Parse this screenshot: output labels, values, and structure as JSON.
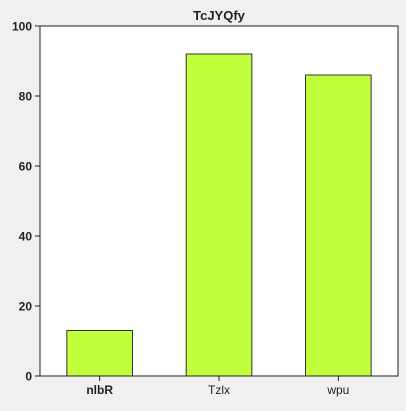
{
  "chart_data": {
    "type": "bar",
    "title": "TcJYQfy",
    "xlabel": "",
    "ylabel": "",
    "categories": [
      "nlbR",
      "Tzlx",
      "wpu"
    ],
    "series": [
      {
        "values": [
          13,
          92,
          86
        ]
      }
    ],
    "ylim": [
      0,
      100
    ],
    "yticks": [
      0,
      20,
      40,
      60,
      80,
      100
    ],
    "grid": false,
    "legend": "none",
    "bar_color": "#c1ff3d",
    "bar_edge_color": "#333333",
    "background_color": "#f0f0f0",
    "plot_background_color": "#ffffff",
    "bold_categories": [
      0
    ]
  }
}
